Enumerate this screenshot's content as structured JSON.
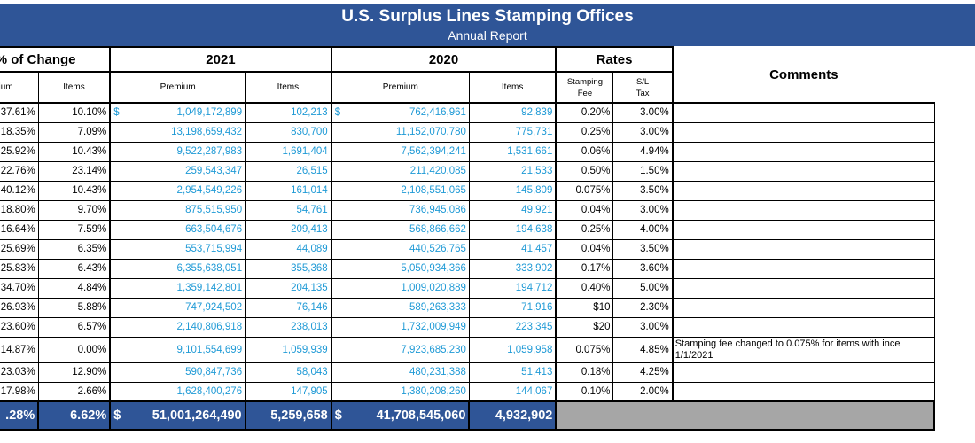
{
  "title": "U.S. Surplus Lines Stamping Offices",
  "subtitle": "Annual Report",
  "groups": {
    "change": "% of Change",
    "y2021": "2021",
    "y2020": "2020",
    "rates": "Rates",
    "comments": "Comments"
  },
  "columns": {
    "change_premium": "emium",
    "change_items": "Items",
    "premium_2021": "Premium",
    "items_2021": "Items",
    "premium_2020": "Premium",
    "items_2020": "Items",
    "stamping_fee_line1": "Stamping",
    "stamping_fee_line2": "Fee",
    "sl_tax_line1": "S/L",
    "sl_tax_line2": "Tax"
  },
  "currency_symbol": "$",
  "rows": [
    {
      "chg_prem": "37.61%",
      "chg_items": "10.10%",
      "prem21": "1,049,172,899",
      "items21": "102,213",
      "prem20": "762,416,961",
      "items20": "92,839",
      "fee": "0.20%",
      "tax": "3.00%",
      "comment": ""
    },
    {
      "chg_prem": "18.35%",
      "chg_items": "7.09%",
      "prem21": "13,198,659,432",
      "items21": "830,700",
      "prem20": "11,152,070,780",
      "items20": "775,731",
      "fee": "0.25%",
      "tax": "3.00%",
      "comment": ""
    },
    {
      "chg_prem": "25.92%",
      "chg_items": "10.43%",
      "prem21": "9,522,287,983",
      "items21": "1,691,404",
      "prem20": "7,562,394,241",
      "items20": "1,531,661",
      "fee": "0.06%",
      "tax": "4.94%",
      "comment": ""
    },
    {
      "chg_prem": "22.76%",
      "chg_items": "23.14%",
      "prem21": "259,543,347",
      "items21": "26,515",
      "prem20": "211,420,085",
      "items20": "21,533",
      "fee": "0.50%",
      "tax": "1.50%",
      "comment": ""
    },
    {
      "chg_prem": "40.12%",
      "chg_items": "10.43%",
      "prem21": "2,954,549,226",
      "items21": "161,014",
      "prem20": "2,108,551,065",
      "items20": "145,809",
      "fee": "0.075%",
      "tax": "3.50%",
      "comment": ""
    },
    {
      "chg_prem": "18.80%",
      "chg_items": "9.70%",
      "prem21": "875,515,950",
      "items21": "54,761",
      "prem20": "736,945,086",
      "items20": "49,921",
      "fee": "0.04%",
      "tax": "3.00%",
      "comment": ""
    },
    {
      "chg_prem": "16.64%",
      "chg_items": "7.59%",
      "prem21": "663,504,676",
      "items21": "209,413",
      "prem20": "568,866,662",
      "items20": "194,638",
      "fee": "0.25%",
      "tax": "4.00%",
      "comment": ""
    },
    {
      "chg_prem": "25.69%",
      "chg_items": "6.35%",
      "prem21": "553,715,994",
      "items21": "44,089",
      "prem20": "440,526,765",
      "items20": "41,457",
      "fee": "0.04%",
      "tax": "3.50%",
      "comment": ""
    },
    {
      "chg_prem": "25.83%",
      "chg_items": "6.43%",
      "prem21": "6,355,638,051",
      "items21": "355,368",
      "prem20": "5,050,934,366",
      "items20": "333,902",
      "fee": "0.17%",
      "tax": "3.60%",
      "comment": ""
    },
    {
      "chg_prem": "34.70%",
      "chg_items": "4.84%",
      "prem21": "1,359,142,801",
      "items21": "204,135",
      "prem20": "1,009,020,889",
      "items20": "194,712",
      "fee": "0.40%",
      "tax": "5.00%",
      "comment": ""
    },
    {
      "chg_prem": "26.93%",
      "chg_items": "5.88%",
      "prem21": "747,924,502",
      "items21": "76,146",
      "prem20": "589,263,333",
      "items20": "71,916",
      "fee": "$10",
      "tax": "2.30%",
      "comment": ""
    },
    {
      "chg_prem": "23.60%",
      "chg_items": "6.57%",
      "prem21": "2,140,806,918",
      "items21": "238,013",
      "prem20": "1,732,009,949",
      "items20": "223,345",
      "fee": "$20",
      "tax": "3.00%",
      "comment": ""
    },
    {
      "chg_prem": "14.87%",
      "chg_items": "0.00%",
      "prem21": "9,101,554,699",
      "items21": "1,059,939",
      "prem20": "7,923,685,230",
      "items20": "1,059,958",
      "fee": "0.075%",
      "tax": "4.85%",
      "comment": "Stamping fee changed to 0.075% for items with ince 1/1/2021"
    },
    {
      "chg_prem": "23.03%",
      "chg_items": "12.90%",
      "prem21": "590,847,736",
      "items21": "58,043",
      "prem20": "480,231,388",
      "items20": "51,413",
      "fee": "0.18%",
      "tax": "4.25%",
      "comment": ""
    },
    {
      "chg_prem": "17.98%",
      "chg_items": "2.66%",
      "prem21": "1,628,400,276",
      "items21": "147,905",
      "prem20": "1,380,208,260",
      "items20": "144,067",
      "fee": "0.10%",
      "tax": "2.00%",
      "comment": ""
    }
  ],
  "totals": {
    "chg_prem": ".28%",
    "chg_items": "6.62%",
    "prem21": "51,001,264,490",
    "items21": "5,259,658",
    "prem20": "41,708,545,060",
    "items20": "4,932,902"
  },
  "colors": {
    "banner": "#2f5597",
    "value_blue": "#1f9ad6",
    "totals_gray": "#a6a6a6"
  }
}
